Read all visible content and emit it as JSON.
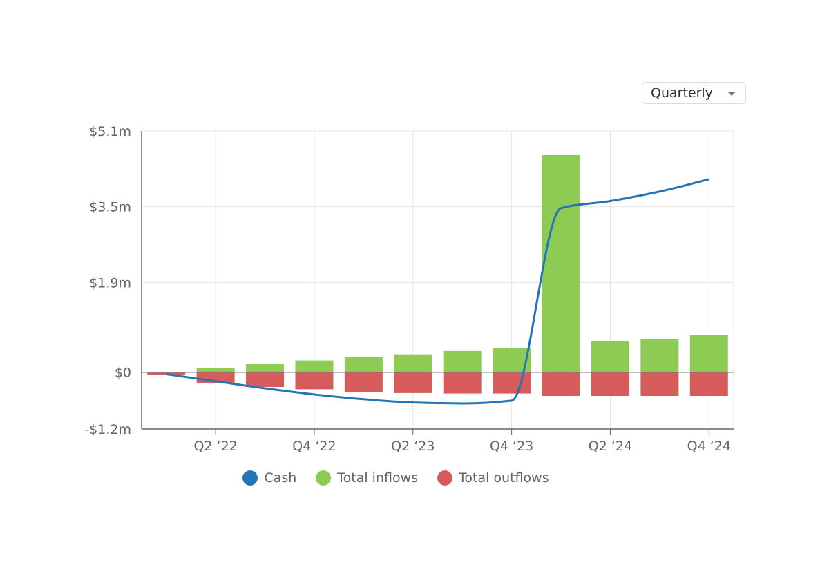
{
  "controls": {
    "period": "Quarterly"
  },
  "chart_data": {
    "type": "bar",
    "categories": [
      "Q1 '22",
      "Q2 '22",
      "Q3 '22",
      "Q4 '22",
      "Q1 '23",
      "Q2 '23",
      "Q3 '23",
      "Q4 '23",
      "Q1 '24",
      "Q2 '24",
      "Q3 '24",
      "Q4 '24"
    ],
    "x_tick_labels": [
      "Q2 ‘22",
      "Q4 ‘22",
      "Q2 ‘23",
      "Q4 ‘23",
      "Q2 ‘24",
      "Q4 ‘24"
    ],
    "y_tick_labels": [
      "$5.1m",
      "$3.5m",
      "$1.9m",
      "$0",
      "-$1.2m"
    ],
    "y_tick_values": [
      5.1,
      3.5,
      1.9,
      0,
      -1.2
    ],
    "ylim": [
      -1.2,
      5.1
    ],
    "y_unit": "$m",
    "grid": true,
    "legend_position": "bottom",
    "series": [
      {
        "name": "Cash",
        "type": "line",
        "color": "#2275b6",
        "values": [
          -0.04,
          -0.19,
          -0.34,
          -0.47,
          -0.57,
          -0.64,
          -0.66,
          -0.6,
          3.47,
          3.62,
          3.82,
          4.08
        ]
      },
      {
        "name": "Total inflows",
        "type": "bar",
        "color": "#8dcb55",
        "values": [
          0,
          0.09,
          0.17,
          0.25,
          0.32,
          0.38,
          0.45,
          0.52,
          4.59,
          0.66,
          0.71,
          0.79
        ]
      },
      {
        "name": "Total outflows",
        "type": "bar",
        "color": "#d65c5c",
        "values": [
          -0.06,
          -0.23,
          -0.31,
          -0.36,
          -0.42,
          -0.44,
          -0.45,
          -0.45,
          -0.5,
          -0.5,
          -0.5,
          -0.5
        ]
      }
    ]
  }
}
